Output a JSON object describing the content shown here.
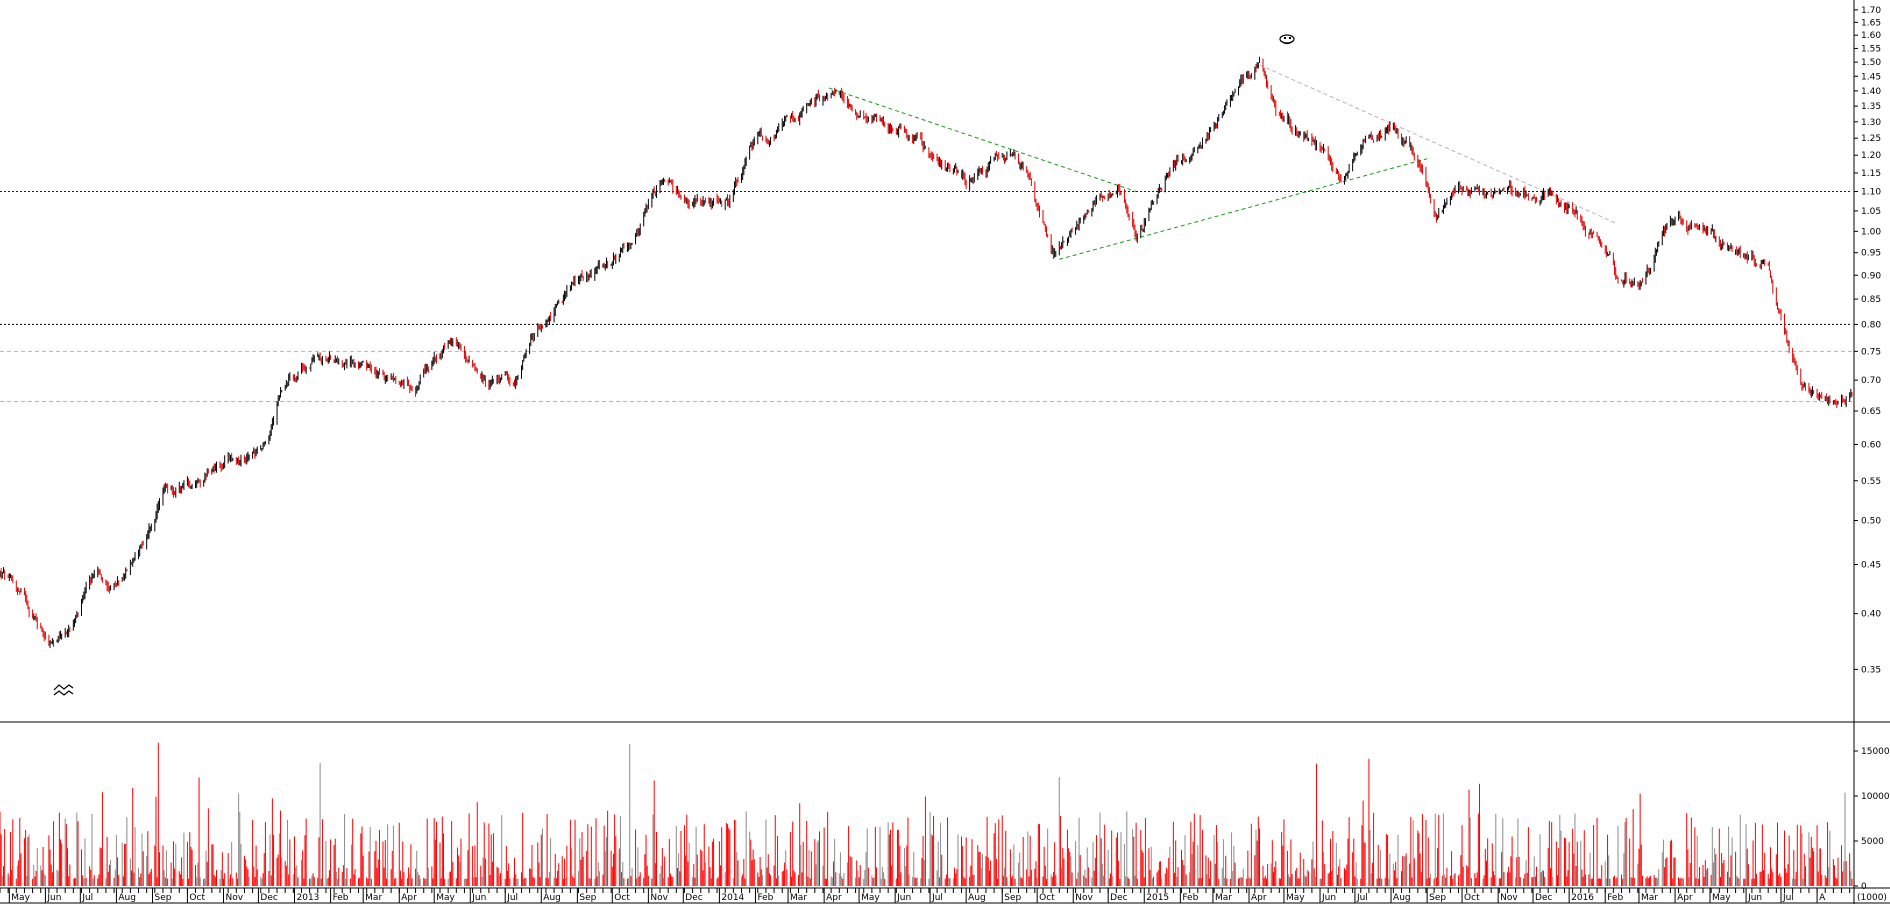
{
  "chart_data": [
    {
      "type": "candlestick",
      "panel": "price",
      "scale": "log",
      "ylim": [
        0.31,
        1.72
      ],
      "y_ticks": [
        1.7,
        1.65,
        1.6,
        1.55,
        1.5,
        1.45,
        1.4,
        1.35,
        1.3,
        1.25,
        1.2,
        1.15,
        1.1,
        1.05,
        1.0,
        0.95,
        0.9,
        0.85,
        0.8,
        0.75,
        0.7,
        0.65,
        0.6,
        0.55,
        0.5,
        0.45,
        0.4,
        0.35
      ],
      "y_tick_labels": [
        "1.70",
        "1.65",
        "1.60",
        "1.55",
        "1.50",
        "1.45",
        "1.40",
        "1.35",
        "1.30",
        "1.25",
        "1.20",
        "1.15",
        "1.10",
        "1.05",
        "1.00",
        "0.95",
        "0.90",
        "0.85",
        "0.80",
        "0.75",
        "0.70",
        "0.65",
        "0.60",
        "0.55",
        "0.50",
        "0.45",
        "0.40",
        "0.35"
      ],
      "up_color": "#000000",
      "down_color": "#e00000",
      "price_path": [
        [
          "2012-04-25",
          0.44
        ],
        [
          "2012-05-15",
          0.41
        ],
        [
          "2012-06-10",
          0.37
        ],
        [
          "2012-06-25",
          0.39
        ],
        [
          "2012-07-15",
          0.44
        ],
        [
          "2012-08-05",
          0.43
        ],
        [
          "2012-08-25",
          0.48
        ],
        [
          "2012-09-10",
          0.53
        ],
        [
          "2012-10-05",
          0.55
        ],
        [
          "2012-10-25",
          0.58
        ],
        [
          "2012-11-20",
          0.58
        ],
        [
          "2012-12-10",
          0.6
        ],
        [
          "2012-12-20",
          0.7
        ],
        [
          "2013-01-20",
          0.74
        ],
        [
          "2013-02-20",
          0.73
        ],
        [
          "2013-03-20",
          0.69
        ],
        [
          "2013-04-15",
          0.69
        ],
        [
          "2013-05-15",
          0.77
        ],
        [
          "2013-06-15",
          0.7
        ],
        [
          "2013-07-10",
          0.7
        ],
        [
          "2013-08-01",
          0.8
        ],
        [
          "2013-08-20",
          0.85
        ],
        [
          "2013-09-15",
          0.9
        ],
        [
          "2013-10-15",
          0.96
        ],
        [
          "2013-11-10",
          1.1
        ],
        [
          "2013-12-10",
          1.05
        ],
        [
          "2014-01-10",
          1.08
        ],
        [
          "2014-02-01",
          1.25
        ],
        [
          "2014-03-01",
          1.3
        ],
        [
          "2014-04-05",
          1.4
        ],
        [
          "2014-05-05",
          1.33
        ],
        [
          "2014-06-05",
          1.3
        ],
        [
          "2014-07-01",
          1.2
        ],
        [
          "2014-08-01",
          1.12
        ],
        [
          "2014-09-01",
          1.2
        ],
        [
          "2014-09-25",
          1.15
        ],
        [
          "2014-10-15",
          0.95
        ],
        [
          "2014-11-15",
          1.05
        ],
        [
          "2014-12-10",
          1.12
        ],
        [
          "2014-12-25",
          1.0
        ],
        [
          "2015-01-20",
          1.15
        ],
        [
          "2015-02-20",
          1.25
        ],
        [
          "2015-03-20",
          1.4
        ],
        [
          "2015-04-10",
          1.5
        ],
        [
          "2015-04-25",
          1.3
        ],
        [
          "2015-05-20",
          1.25
        ],
        [
          "2015-06-20",
          1.15
        ],
        [
          "2015-07-10",
          1.25
        ],
        [
          "2015-08-01",
          1.28
        ],
        [
          "2015-08-25",
          1.2
        ],
        [
          "2015-09-10",
          1.05
        ],
        [
          "2015-10-05",
          1.1
        ],
        [
          "2015-11-05",
          1.08
        ],
        [
          "2015-12-05",
          1.1
        ],
        [
          "2016-01-05",
          1.05
        ],
        [
          "2016-02-10",
          0.9
        ],
        [
          "2016-03-01",
          0.88
        ],
        [
          "2016-03-25",
          1.0
        ],
        [
          "2016-04-20",
          1.02
        ],
        [
          "2016-05-20",
          0.95
        ],
        [
          "2016-06-20",
          0.92
        ],
        [
          "2016-07-05",
          0.78
        ],
        [
          "2016-07-20",
          0.7
        ],
        [
          "2016-08-05",
          0.66
        ],
        [
          "2016-08-20",
          0.68
        ]
      ],
      "horizontal_lines": [
        {
          "value": 1.1,
          "color": "#0000ff",
          "style": "dotted"
        },
        {
          "value": 0.8,
          "color": "#000000",
          "style": "dotted"
        },
        {
          "value": 0.75,
          "color": "#b4b4b4",
          "style": "dashed"
        },
        {
          "value": 0.665,
          "color": "#b4b4b4",
          "style": "dashed"
        }
      ],
      "trend_lines": [
        {
          "from": [
            "2014-04-05",
            1.41
          ],
          "to": [
            "2014-12-25",
            1.1
          ],
          "color": "#1a9a1a",
          "style": "dashed"
        },
        {
          "from": [
            "2014-10-20",
            0.935
          ],
          "to": [
            "2015-09-01",
            1.19
          ],
          "color": "#1a9a1a",
          "style": "dashed"
        },
        {
          "from": [
            "2015-04-10",
            1.49
          ],
          "to": [
            "2016-02-10",
            1.02
          ],
          "color": "#b4b4b4",
          "style": "dashed"
        }
      ],
      "markers": [
        "smiley",
        "frown"
      ],
      "grid": false
    },
    {
      "type": "bar",
      "panel": "volume",
      "units_label": "(1000)",
      "ylim": [
        0,
        18000
      ],
      "y_ticks": [
        0,
        5000,
        10000,
        15000
      ],
      "y_tick_labels": [
        "0",
        "5000",
        "10000",
        "15000"
      ],
      "colors": [
        "#ff0000",
        "#8c8c8c"
      ],
      "grid": false
    },
    {
      "x_axis": {
        "range": [
          "2012-04-23",
          "2016-08-31"
        ],
        "tick_labels": [
          {
            "date": "2012-05-01",
            "label": "May"
          },
          {
            "date": "2012-06-01",
            "label": "Jun"
          },
          {
            "date": "2012-07-01",
            "label": "Jul"
          },
          {
            "date": "2012-08-01",
            "label": "Aug"
          },
          {
            "date": "2012-09-01",
            "label": "Sep"
          },
          {
            "date": "2012-10-01",
            "label": "Oct"
          },
          {
            "date": "2012-11-01",
            "label": "Nov"
          },
          {
            "date": "2012-12-01",
            "label": "Dec"
          },
          {
            "date": "2013-01-01",
            "label": "2013"
          },
          {
            "date": "2013-02-01",
            "label": "Feb"
          },
          {
            "date": "2013-03-01",
            "label": "Mar"
          },
          {
            "date": "2013-04-01",
            "label": "Apr"
          },
          {
            "date": "2013-05-01",
            "label": "May"
          },
          {
            "date": "2013-06-01",
            "label": "Jun"
          },
          {
            "date": "2013-07-01",
            "label": "Jul"
          },
          {
            "date": "2013-08-01",
            "label": "Aug"
          },
          {
            "date": "2013-09-01",
            "label": "Sep"
          },
          {
            "date": "2013-10-01",
            "label": "Oct"
          },
          {
            "date": "2013-11-01",
            "label": "Nov"
          },
          {
            "date": "2013-12-01",
            "label": "Dec"
          },
          {
            "date": "2014-01-01",
            "label": "2014"
          },
          {
            "date": "2014-02-01",
            "label": "Feb"
          },
          {
            "date": "2014-03-01",
            "label": "Mar"
          },
          {
            "date": "2014-04-01",
            "label": "Apr"
          },
          {
            "date": "2014-05-01",
            "label": "May"
          },
          {
            "date": "2014-06-01",
            "label": "Jun"
          },
          {
            "date": "2014-07-01",
            "label": "Jul"
          },
          {
            "date": "2014-08-01",
            "label": "Aug"
          },
          {
            "date": "2014-09-01",
            "label": "Sep"
          },
          {
            "date": "2014-10-01",
            "label": "Oct"
          },
          {
            "date": "2014-11-01",
            "label": "Nov"
          },
          {
            "date": "2014-12-01",
            "label": "Dec"
          },
          {
            "date": "2015-01-01",
            "label": "2015"
          },
          {
            "date": "2015-02-01",
            "label": "Feb"
          },
          {
            "date": "2015-03-01",
            "label": "Mar"
          },
          {
            "date": "2015-04-01",
            "label": "Apr"
          },
          {
            "date": "2015-05-01",
            "label": "May"
          },
          {
            "date": "2015-06-01",
            "label": "Jun"
          },
          {
            "date": "2015-07-01",
            "label": "Jul"
          },
          {
            "date": "2015-08-01",
            "label": "Aug"
          },
          {
            "date": "2015-09-01",
            "label": "Sep"
          },
          {
            "date": "2015-10-01",
            "label": "Oct"
          },
          {
            "date": "2015-11-01",
            "label": "Nov"
          },
          {
            "date": "2015-12-01",
            "label": "Dec"
          },
          {
            "date": "2016-01-01",
            "label": "2016"
          },
          {
            "date": "2016-02-01",
            "label": "Feb"
          },
          {
            "date": "2016-03-01",
            "label": "Mar"
          },
          {
            "date": "2016-04-01",
            "label": "Apr"
          },
          {
            "date": "2016-05-01",
            "label": "May"
          },
          {
            "date": "2016-06-01",
            "label": "Jun"
          },
          {
            "date": "2016-07-01",
            "label": "Jul"
          },
          {
            "date": "2016-08-01",
            "label": "A"
          }
        ]
      }
    }
  ]
}
